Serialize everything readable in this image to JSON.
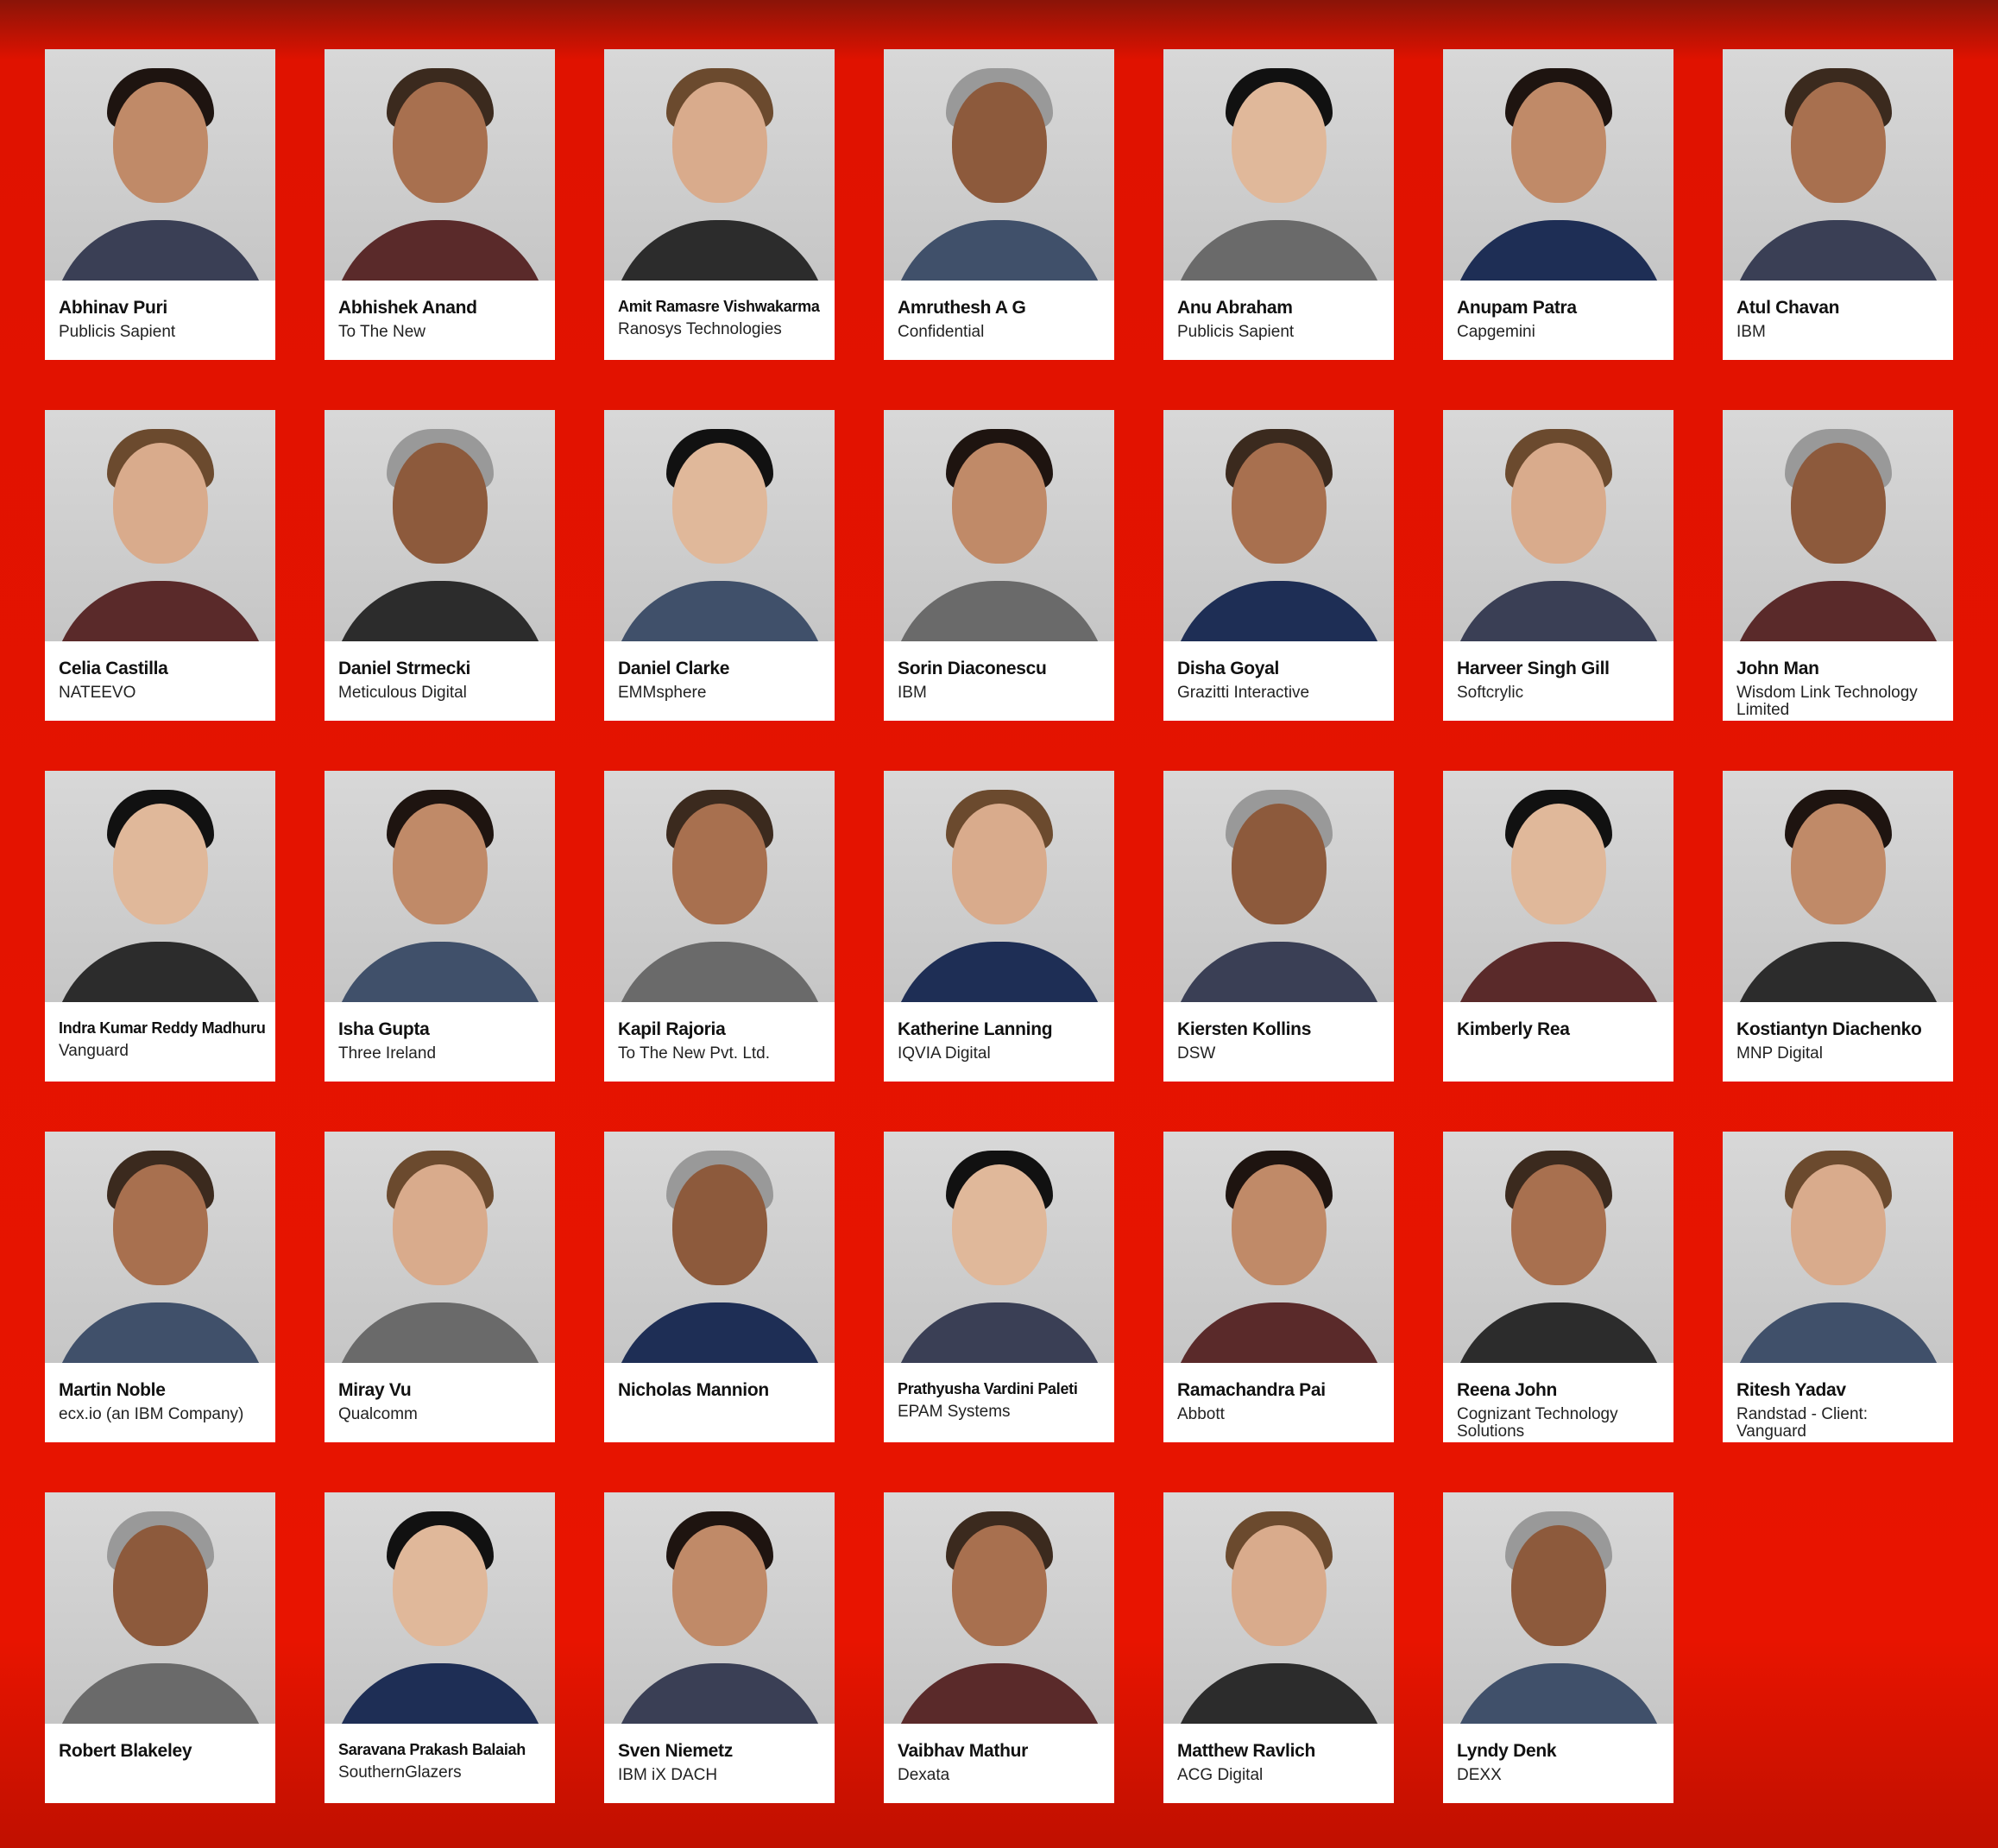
{
  "people": [
    {
      "name": "Abhinav Puri",
      "company": "Publicis Sapient"
    },
    {
      "name": "Abhishek Anand",
      "company": "To The New"
    },
    {
      "name": "Amit Ramasre Vishwakarma",
      "company": "Ranosys Technologies"
    },
    {
      "name": "Amruthesh A G",
      "company": "Confidential"
    },
    {
      "name": "Anu Abraham",
      "company": "Publicis Sapient"
    },
    {
      "name": "Anupam Patra",
      "company": "Capgemini"
    },
    {
      "name": "Atul Chavan",
      "company": "IBM"
    },
    {
      "name": "Celia Castilla",
      "company": "NATEEVO"
    },
    {
      "name": "Daniel Strmecki",
      "company": "Meticulous Digital"
    },
    {
      "name": "Daniel Clarke",
      "company": "EMMsphere"
    },
    {
      "name": "Sorin Diaconescu",
      "company": "IBM"
    },
    {
      "name": "Disha Goyal",
      "company": "Grazitti Interactive"
    },
    {
      "name": "Harveer Singh Gill",
      "company": "Softcrylic"
    },
    {
      "name": "John Man",
      "company": "Wisdom Link Technology Limited"
    },
    {
      "name": "Indra Kumar Reddy Madhuru",
      "company": "Vanguard"
    },
    {
      "name": "Isha Gupta",
      "company": "Three Ireland"
    },
    {
      "name": "Kapil Rajoria",
      "company": "To The New Pvt. Ltd."
    },
    {
      "name": "Katherine Lanning",
      "company": "IQVIA Digital"
    },
    {
      "name": "Kiersten Kollins",
      "company": "DSW"
    },
    {
      "name": "Kimberly Rea",
      "company": ""
    },
    {
      "name": "Kostiantyn Diachenko",
      "company": "MNP Digital"
    },
    {
      "name": "Martin Noble",
      "company": "ecx.io (an IBM Company)"
    },
    {
      "name": "Miray Vu",
      "company": "Qualcomm"
    },
    {
      "name": "Nicholas Mannion",
      "company": ""
    },
    {
      "name": "Prathyusha Vardini Paleti",
      "company": "EPAM Systems"
    },
    {
      "name": "Ramachandra Pai",
      "company": "Abbott"
    },
    {
      "name": "Reena John",
      "company": "Cognizant Technology Solutions"
    },
    {
      "name": "Ritesh Yadav",
      "company": "Randstad - Client: Vanguard"
    },
    {
      "name": "Robert Blakeley",
      "company": ""
    },
    {
      "name": "Saravana Prakash Balaiah",
      "company": "SouthernGlazers"
    },
    {
      "name": "Sven Niemetz",
      "company": "IBM iX DACH"
    },
    {
      "name": "Vaibhav Mathur",
      "company": "Dexata"
    },
    {
      "name": "Matthew Ravlich",
      "company": "ACG Digital"
    },
    {
      "name": "Lyndy Denk",
      "company": "DEXX"
    }
  ],
  "colors": {
    "background": "#e81400",
    "card": "#ffffff",
    "photo_bg": "#d0d0d0"
  }
}
